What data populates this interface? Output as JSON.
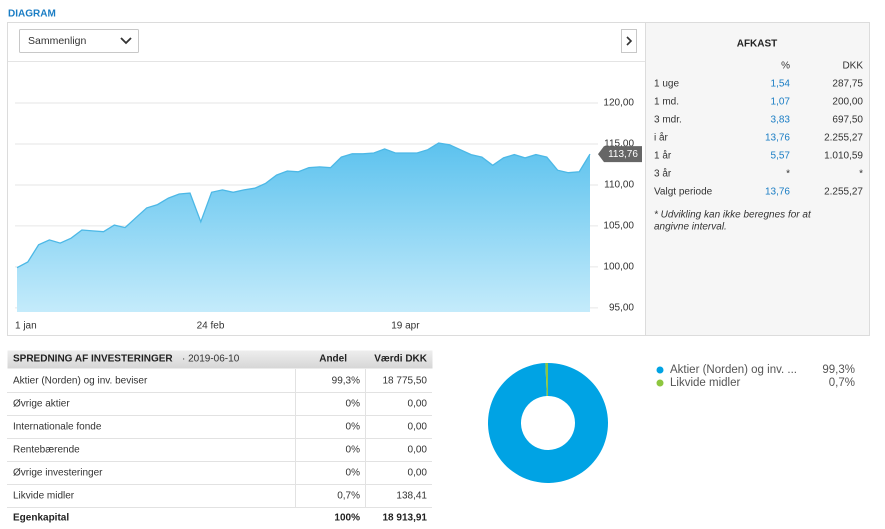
{
  "header": {
    "title": "DIAGRAM"
  },
  "compare_button": "Sammenlign",
  "chart_data": [
    {
      "type": "area",
      "categories": [
        "1 jan",
        null,
        null,
        null,
        null,
        null,
        null,
        null,
        null,
        null,
        null,
        null,
        null,
        null,
        null,
        null,
        null,
        null,
        "24 feb",
        null,
        null,
        null,
        null,
        null,
        null,
        null,
        null,
        null,
        null,
        null,
        null,
        null,
        null,
        null,
        null,
        null,
        "19 apr",
        null,
        null,
        null,
        null,
        null,
        null,
        null,
        null,
        null,
        null,
        null,
        null,
        null,
        null,
        null,
        null,
        null
      ],
      "values": [
        99.9,
        100.6,
        102.7,
        103.3,
        102.9,
        103.5,
        104.5,
        104.4,
        104.3,
        105.1,
        104.8,
        106.0,
        107.2,
        107.6,
        108.4,
        108.9,
        109.0,
        105.5,
        109.1,
        109.4,
        109.1,
        109.4,
        109.6,
        110.2,
        111.2,
        111.7,
        111.6,
        112.1,
        112.2,
        112.1,
        113.4,
        113.8,
        113.8,
        113.9,
        114.4,
        113.9,
        113.9,
        113.9,
        114.3,
        115.1,
        114.9,
        114.3,
        113.7,
        113.4,
        112.4,
        113.3,
        113.7,
        113.3,
        113.7,
        113.4,
        111.8,
        111.5,
        111.6,
        113.76
      ],
      "value_labels": [
        null,
        null,
        null,
        null,
        null,
        null,
        null,
        null,
        null,
        null,
        null,
        null,
        null,
        null,
        null,
        null,
        null,
        null,
        null,
        null,
        null,
        null,
        null,
        null,
        null,
        null,
        null,
        null,
        null,
        null,
        null,
        null,
        null,
        null,
        null,
        null,
        null,
        null,
        null,
        null,
        null,
        null,
        null,
        null,
        null,
        null,
        null,
        null,
        null,
        null,
        null,
        null,
        null,
        "113,76"
      ],
      "color": "#4cb8e6",
      "ylim": [
        94.5,
        125
      ],
      "yticks": [
        {
          "value": 95,
          "label": "95,00"
        },
        {
          "value": 100,
          "label": "100,00"
        },
        {
          "value": 105,
          "label": "105,00"
        },
        {
          "value": 110,
          "label": "110,00"
        },
        {
          "value": 115,
          "label": "115,00"
        },
        {
          "value": 120,
          "label": "120,00"
        }
      ],
      "grid": true
    },
    {
      "type": "pie",
      "categories": [
        "Aktier (Norden) og inv. ...",
        "Likvide midler"
      ],
      "values": [
        99.3,
        0.7
      ],
      "value_labels": [
        "99,3%",
        "0,7%"
      ],
      "colors": [
        "#00a3e4",
        "#8dc63f"
      ]
    }
  ],
  "returns": {
    "title": "AFKAST",
    "columns": [
      "%",
      "DKK"
    ],
    "rows": [
      [
        "1 uge",
        "1,54",
        "287,75"
      ],
      [
        "1 md.",
        "1,07",
        "200,00"
      ],
      [
        "3 mdr.",
        "3,83",
        "697,50"
      ],
      [
        "i år",
        "13,76",
        "2.255,27"
      ],
      [
        "1 år",
        "5,57",
        "1.010,59"
      ],
      [
        "3 år",
        "*",
        "*"
      ],
      [
        "Valgt periode",
        "13,76",
        "2.255,27"
      ]
    ],
    "footnote": [
      "* Udvikling kan ikke beregnes for at",
      "angivne interval."
    ]
  },
  "allocation": {
    "title": "SPREDNING AF INVESTERINGER",
    "date": "· 2019-06-10",
    "columns": [
      "Andel",
      "Værdi DKK"
    ],
    "rows": [
      [
        "Aktier (Norden) og inv. beviser",
        "99,3%",
        "18 775,50"
      ],
      [
        "Øvrige aktier",
        "0%",
        "0,00"
      ],
      [
        "Internationale fonde",
        "0%",
        "0,00"
      ],
      [
        "Rentebærende",
        "0%",
        "0,00"
      ],
      [
        "Øvrige investeringer",
        "0%",
        "0,00"
      ],
      [
        "Likvide midler",
        "0,7%",
        "138,41"
      ]
    ],
    "total": [
      "Egenkapital",
      "100%",
      "18 913,91"
    ]
  }
}
